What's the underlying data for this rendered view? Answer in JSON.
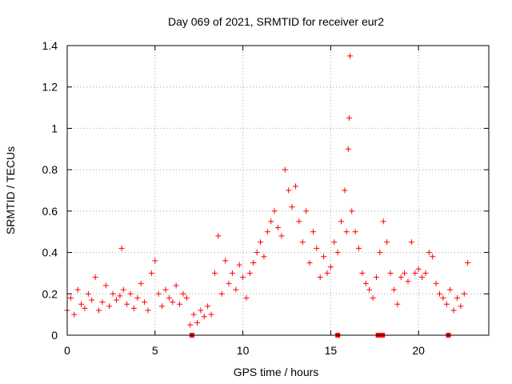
{
  "chart_data": {
    "type": "scatter",
    "title": "Day 069 of 2021, SRMTID for receiver eur2",
    "xlabel": "GPS time / hours",
    "ylabel": "SRMTID / TECUs",
    "xlim": [
      0,
      24
    ],
    "ylim": [
      0,
      1.4
    ],
    "xticks": [
      0,
      5,
      10,
      15,
      20
    ],
    "yticks": [
      0,
      0.2,
      0.4,
      0.6,
      0.8,
      1,
      1.2,
      1.4
    ],
    "xtick_labels": [
      "0",
      "5",
      "10",
      "15",
      "20"
    ],
    "ytick_labels": [
      "0",
      "0.2",
      "0.4",
      "0.6",
      "0.8",
      "1",
      "1.2",
      "1.4"
    ],
    "grid": true,
    "marker": "+",
    "color": "#ff0000",
    "series": [
      {
        "name": "SRMTID",
        "x": [
          0.0,
          0.2,
          0.4,
          0.6,
          0.8,
          1.0,
          1.2,
          1.4,
          1.6,
          1.8,
          2.0,
          2.2,
          2.4,
          2.6,
          2.8,
          3.0,
          3.1,
          3.2,
          3.4,
          3.6,
          3.8,
          4.0,
          4.2,
          4.4,
          4.6,
          4.8,
          5.0,
          5.2,
          5.4,
          5.6,
          5.8,
          6.0,
          6.2,
          6.4,
          6.6,
          6.8,
          7.0,
          7.2,
          7.4,
          7.6,
          7.8,
          8.0,
          8.2,
          8.4,
          8.6,
          8.8,
          9.0,
          9.2,
          9.4,
          9.6,
          9.8,
          10.0,
          10.2,
          10.4,
          10.6,
          10.8,
          11.0,
          11.2,
          11.4,
          11.6,
          11.8,
          12.0,
          12.2,
          12.4,
          12.6,
          12.8,
          13.0,
          13.2,
          13.4,
          13.6,
          13.8,
          14.0,
          14.2,
          14.4,
          14.6,
          14.8,
          15.0,
          15.2,
          15.4,
          15.6,
          15.8,
          15.9,
          16.0,
          16.05,
          16.1,
          16.2,
          16.4,
          16.6,
          16.8,
          17.0,
          17.2,
          17.4,
          17.6,
          17.8,
          18.0,
          18.2,
          18.4,
          18.6,
          18.8,
          19.0,
          19.2,
          19.4,
          19.6,
          19.8,
          20.0,
          20.2,
          20.4,
          20.6,
          20.8,
          21.0,
          21.2,
          21.4,
          21.6,
          21.8,
          22.0,
          22.2,
          22.4,
          22.6,
          22.8
        ],
        "y": [
          0.12,
          0.18,
          0.1,
          0.22,
          0.15,
          0.13,
          0.2,
          0.17,
          0.28,
          0.12,
          0.16,
          0.24,
          0.14,
          0.2,
          0.17,
          0.19,
          0.42,
          0.22,
          0.15,
          0.2,
          0.13,
          0.18,
          0.25,
          0.16,
          0.12,
          0.3,
          0.36,
          0.2,
          0.14,
          0.22,
          0.18,
          0.16,
          0.24,
          0.15,
          0.2,
          0.18,
          0.05,
          0.1,
          0.06,
          0.12,
          0.09,
          0.14,
          0.1,
          0.3,
          0.48,
          0.2,
          0.36,
          0.25,
          0.3,
          0.22,
          0.34,
          0.28,
          0.18,
          0.3,
          0.35,
          0.4,
          0.45,
          0.38,
          0.5,
          0.55,
          0.6,
          0.52,
          0.48,
          0.8,
          0.7,
          0.62,
          0.72,
          0.55,
          0.45,
          0.6,
          0.35,
          0.5,
          0.42,
          0.28,
          0.38,
          0.3,
          0.33,
          0.45,
          0.4,
          0.55,
          0.7,
          0.5,
          0.9,
          1.05,
          1.35,
          0.6,
          0.5,
          0.42,
          0.3,
          0.25,
          0.22,
          0.18,
          0.28,
          0.4,
          0.55,
          0.45,
          0.3,
          0.22,
          0.15,
          0.28,
          0.3,
          0.26,
          0.45,
          0.3,
          0.32,
          0.28,
          0.3,
          0.4,
          0.38,
          0.25,
          0.2,
          0.18,
          0.15,
          0.22,
          0.12,
          0.18,
          0.14,
          0.2,
          0.35
        ]
      }
    ],
    "markers_at_zero": [
      7.1,
      15.4,
      17.7,
      17.95,
      21.7
    ]
  }
}
